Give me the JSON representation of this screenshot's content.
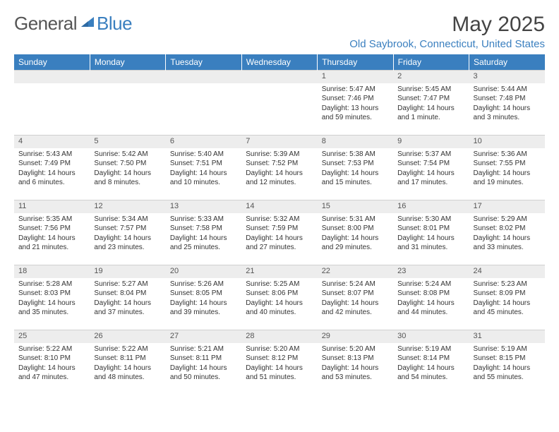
{
  "logo": {
    "left": "General",
    "right": "Blue"
  },
  "title": "May 2025",
  "location": "Old Saybrook, Connecticut, United States",
  "colors": {
    "header_bg": "#3a7fbf",
    "header_text": "#ffffff",
    "daynum_bg": "#ededed",
    "text": "#333333",
    "accent": "#3a7fbf"
  },
  "weekdays": [
    "Sunday",
    "Monday",
    "Tuesday",
    "Wednesday",
    "Thursday",
    "Friday",
    "Saturday"
  ],
  "weeks": [
    [
      null,
      null,
      null,
      null,
      {
        "n": "1",
        "sr": "5:47 AM",
        "ss": "7:46 PM",
        "dl": "13 hours and 59 minutes."
      },
      {
        "n": "2",
        "sr": "5:45 AM",
        "ss": "7:47 PM",
        "dl": "14 hours and 1 minute."
      },
      {
        "n": "3",
        "sr": "5:44 AM",
        "ss": "7:48 PM",
        "dl": "14 hours and 3 minutes."
      }
    ],
    [
      {
        "n": "4",
        "sr": "5:43 AM",
        "ss": "7:49 PM",
        "dl": "14 hours and 6 minutes."
      },
      {
        "n": "5",
        "sr": "5:42 AM",
        "ss": "7:50 PM",
        "dl": "14 hours and 8 minutes."
      },
      {
        "n": "6",
        "sr": "5:40 AM",
        "ss": "7:51 PM",
        "dl": "14 hours and 10 minutes."
      },
      {
        "n": "7",
        "sr": "5:39 AM",
        "ss": "7:52 PM",
        "dl": "14 hours and 12 minutes."
      },
      {
        "n": "8",
        "sr": "5:38 AM",
        "ss": "7:53 PM",
        "dl": "14 hours and 15 minutes."
      },
      {
        "n": "9",
        "sr": "5:37 AM",
        "ss": "7:54 PM",
        "dl": "14 hours and 17 minutes."
      },
      {
        "n": "10",
        "sr": "5:36 AM",
        "ss": "7:55 PM",
        "dl": "14 hours and 19 minutes."
      }
    ],
    [
      {
        "n": "11",
        "sr": "5:35 AM",
        "ss": "7:56 PM",
        "dl": "14 hours and 21 minutes."
      },
      {
        "n": "12",
        "sr": "5:34 AM",
        "ss": "7:57 PM",
        "dl": "14 hours and 23 minutes."
      },
      {
        "n": "13",
        "sr": "5:33 AM",
        "ss": "7:58 PM",
        "dl": "14 hours and 25 minutes."
      },
      {
        "n": "14",
        "sr": "5:32 AM",
        "ss": "7:59 PM",
        "dl": "14 hours and 27 minutes."
      },
      {
        "n": "15",
        "sr": "5:31 AM",
        "ss": "8:00 PM",
        "dl": "14 hours and 29 minutes."
      },
      {
        "n": "16",
        "sr": "5:30 AM",
        "ss": "8:01 PM",
        "dl": "14 hours and 31 minutes."
      },
      {
        "n": "17",
        "sr": "5:29 AM",
        "ss": "8:02 PM",
        "dl": "14 hours and 33 minutes."
      }
    ],
    [
      {
        "n": "18",
        "sr": "5:28 AM",
        "ss": "8:03 PM",
        "dl": "14 hours and 35 minutes."
      },
      {
        "n": "19",
        "sr": "5:27 AM",
        "ss": "8:04 PM",
        "dl": "14 hours and 37 minutes."
      },
      {
        "n": "20",
        "sr": "5:26 AM",
        "ss": "8:05 PM",
        "dl": "14 hours and 39 minutes."
      },
      {
        "n": "21",
        "sr": "5:25 AM",
        "ss": "8:06 PM",
        "dl": "14 hours and 40 minutes."
      },
      {
        "n": "22",
        "sr": "5:24 AM",
        "ss": "8:07 PM",
        "dl": "14 hours and 42 minutes."
      },
      {
        "n": "23",
        "sr": "5:24 AM",
        "ss": "8:08 PM",
        "dl": "14 hours and 44 minutes."
      },
      {
        "n": "24",
        "sr": "5:23 AM",
        "ss": "8:09 PM",
        "dl": "14 hours and 45 minutes."
      }
    ],
    [
      {
        "n": "25",
        "sr": "5:22 AM",
        "ss": "8:10 PM",
        "dl": "14 hours and 47 minutes."
      },
      {
        "n": "26",
        "sr": "5:22 AM",
        "ss": "8:11 PM",
        "dl": "14 hours and 48 minutes."
      },
      {
        "n": "27",
        "sr": "5:21 AM",
        "ss": "8:11 PM",
        "dl": "14 hours and 50 minutes."
      },
      {
        "n": "28",
        "sr": "5:20 AM",
        "ss": "8:12 PM",
        "dl": "14 hours and 51 minutes."
      },
      {
        "n": "29",
        "sr": "5:20 AM",
        "ss": "8:13 PM",
        "dl": "14 hours and 53 minutes."
      },
      {
        "n": "30",
        "sr": "5:19 AM",
        "ss": "8:14 PM",
        "dl": "14 hours and 54 minutes."
      },
      {
        "n": "31",
        "sr": "5:19 AM",
        "ss": "8:15 PM",
        "dl": "14 hours and 55 minutes."
      }
    ]
  ],
  "labels": {
    "sunrise": "Sunrise: ",
    "sunset": "Sunset: ",
    "daylight": "Daylight: "
  }
}
